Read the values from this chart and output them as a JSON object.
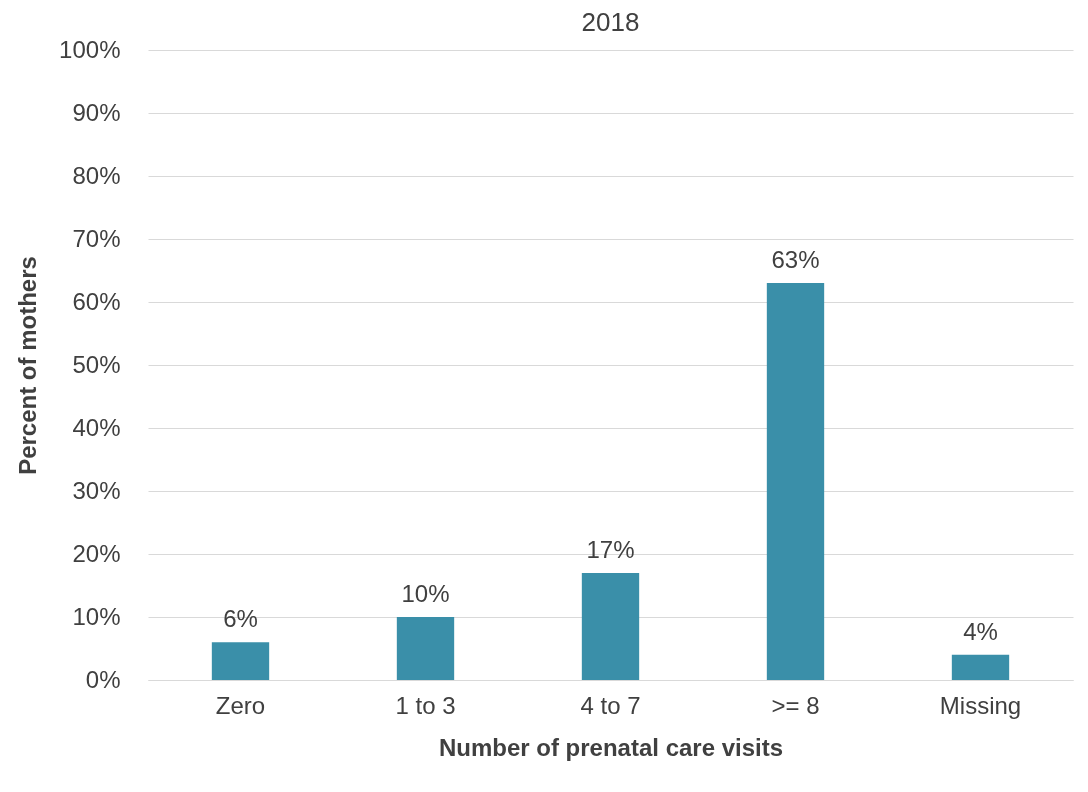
{
  "chart_data": {
    "type": "bar",
    "title": "2018",
    "xlabel": "Number of prenatal care visits",
    "ylabel": "Percent of mothers",
    "categories": [
      "Zero",
      "1 to 3",
      "4 to 7",
      ">= 8",
      "Missing"
    ],
    "values": [
      6,
      10,
      17,
      63,
      4
    ],
    "color": "#3a8fa9",
    "ylim": [
      0,
      100
    ],
    "yticks": [
      {
        "value": 0,
        "label": "0%"
      },
      {
        "value": 10,
        "label": "10%"
      },
      {
        "value": 20,
        "label": "20%"
      },
      {
        "value": 30,
        "label": "30%"
      },
      {
        "value": 40,
        "label": "40%"
      },
      {
        "value": 50,
        "label": "50%"
      },
      {
        "value": 60,
        "label": "60%"
      },
      {
        "value": 70,
        "label": "70%"
      },
      {
        "value": 80,
        "label": "80%"
      },
      {
        "value": 90,
        "label": "90%"
      },
      {
        "value": 100,
        "label": "100%"
      }
    ],
    "value_labels": [
      "6%",
      "10%",
      "17%",
      "63%",
      "4%"
    ],
    "grid": "y"
  }
}
